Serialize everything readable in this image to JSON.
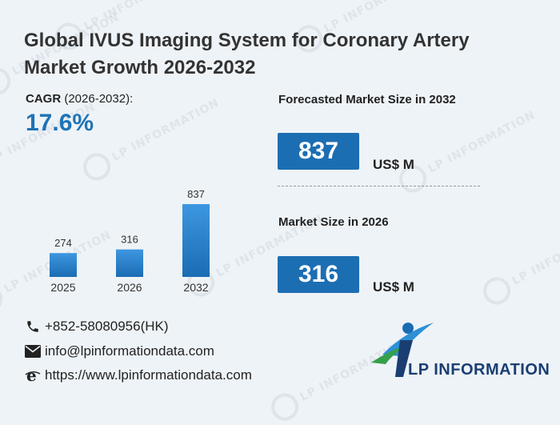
{
  "title": "Global IVUS Imaging System for Coronary Artery Market Growth 2026-2032",
  "cagr": {
    "label": "CAGR",
    "period": "(2026-2032):",
    "value": "17.6%"
  },
  "forecast": {
    "title": "Forecasted Market Size in 2032",
    "value": "837",
    "unit": "US$ M"
  },
  "current": {
    "title": "Market Size in 2026",
    "value": "316",
    "unit": "US$ M"
  },
  "contacts": {
    "phone": "+852-58080956(HK)",
    "email": "info@lpinformationdata.com",
    "website": "https://www.lpinformationdata.com"
  },
  "logo": {
    "text": "LP INFORMATION"
  },
  "watermark": "LP INFORMATION",
  "colors": {
    "accent": "#1f73b6",
    "bar_top": "#3d97e0",
    "bar_bottom": "#1a6cb3"
  },
  "chart_data": {
    "type": "bar",
    "categories": [
      "2025",
      "2026",
      "2032"
    ],
    "values": [
      274,
      316,
      837
    ],
    "title": "",
    "xlabel": "",
    "ylabel": ""
  }
}
